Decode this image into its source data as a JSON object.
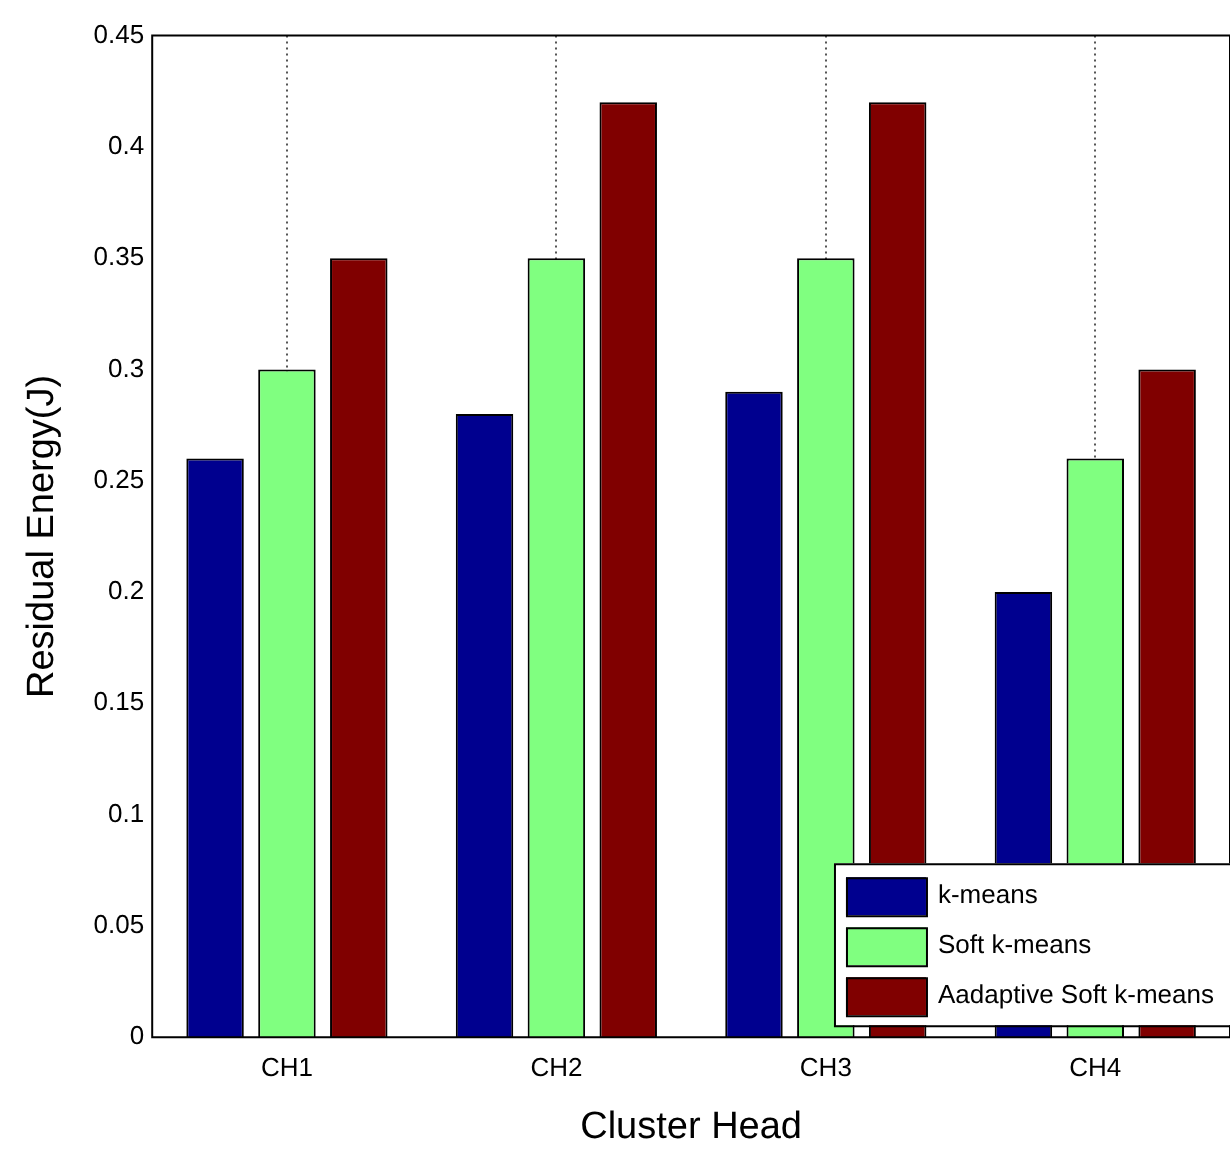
{
  "chart_data": {
    "type": "bar",
    "xlabel": "Cluster Head",
    "ylabel": "Residual Energy(J)",
    "categories": [
      "CH1",
      "CH2",
      "CH3",
      "CH4"
    ],
    "series": [
      {
        "name": "k-means",
        "color": "#00008f",
        "values": [
          0.26,
          0.28,
          0.29,
          0.2
        ]
      },
      {
        "name": "Soft k-means",
        "color": "#80ff80",
        "values": [
          0.3,
          0.35,
          0.35,
          0.26
        ]
      },
      {
        "name": "Aadaptive Soft k-means",
        "color": "#800000",
        "values": [
          0.35,
          0.42,
          0.42,
          0.3
        ]
      }
    ],
    "ylim": [
      0,
      0.45
    ],
    "yticks": [
      0,
      0.05,
      0.1,
      0.15,
      0.2,
      0.25,
      0.3,
      0.35,
      0.4,
      0.45
    ],
    "grid": "x",
    "legend": "bottom right"
  }
}
